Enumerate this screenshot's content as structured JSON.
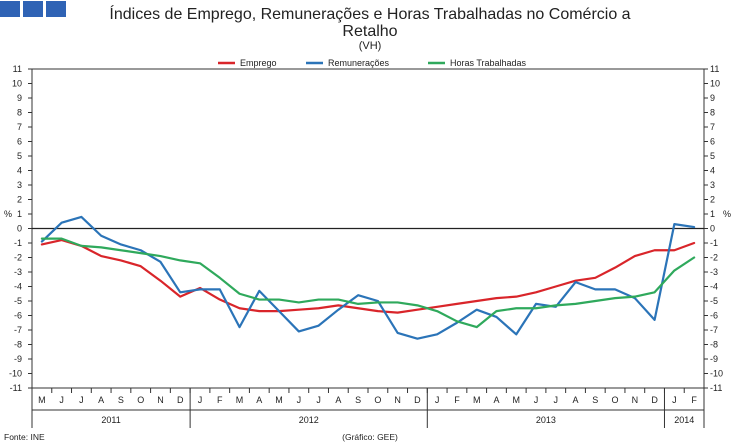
{
  "header": {
    "logo_name": "INE"
  },
  "chart_data": {
    "type": "line",
    "title_line1": "Índices de Emprego, Remunerações e Horas Trabalhadas no Comércio a",
    "title_line2": "Retalho",
    "subtitle": "(VH)",
    "y_unit_label": "%",
    "ylim": [
      -11,
      11
    ],
    "y_ticks": [
      -11,
      -10,
      -9,
      -8,
      -7,
      -6,
      -5,
      -4,
      -3,
      -2,
      -1,
      0,
      1,
      2,
      3,
      4,
      5,
      6,
      7,
      8,
      9,
      10,
      11
    ],
    "categories": [
      "M",
      "J",
      "J",
      "A",
      "S",
      "O",
      "N",
      "D",
      "J",
      "F",
      "M",
      "A",
      "M",
      "J",
      "J",
      "A",
      "S",
      "O",
      "N",
      "D",
      "J",
      "F",
      "M",
      "A",
      "M",
      "J",
      "J",
      "A",
      "S",
      "O",
      "N",
      "D",
      "J",
      "F"
    ],
    "years": [
      {
        "label": "2011",
        "start": 0,
        "end": 7
      },
      {
        "label": "2012",
        "start": 8,
        "end": 19
      },
      {
        "label": "2013",
        "start": 20,
        "end": 31
      },
      {
        "label": "2014",
        "start": 32,
        "end": 33
      }
    ],
    "series": [
      {
        "name": "Emprego",
        "color": "#d9252a",
        "values": [
          -1.1,
          -0.8,
          -1.2,
          -1.9,
          -2.2,
          -2.6,
          -3.6,
          -4.7,
          -4.1,
          -4.9,
          -5.5,
          -5.7,
          -5.7,
          -5.6,
          -5.5,
          -5.3,
          -5.5,
          -5.7,
          -5.8,
          -5.6,
          -5.4,
          -5.2,
          -5.0,
          -4.8,
          -4.7,
          -4.4,
          -4.0,
          -3.6,
          -3.4,
          -2.7,
          -1.9,
          -1.5,
          -1.5,
          -1.0
        ]
      },
      {
        "name": "Remunerações",
        "color": "#2b74b8",
        "values": [
          -0.9,
          0.4,
          0.8,
          -0.5,
          -1.1,
          -1.5,
          -2.3,
          -4.4,
          -4.2,
          -4.2,
          -6.8,
          -4.3,
          -5.7,
          -7.1,
          -6.7,
          -5.6,
          -4.6,
          -5.0,
          -7.2,
          -7.6,
          -7.3,
          -6.5,
          -5.6,
          -6.1,
          -7.3,
          -5.2,
          -5.4,
          -3.7,
          -4.2,
          -4.2,
          -4.8,
          -6.3,
          0.3,
          0.1
        ]
      },
      {
        "name": "Horas Trabalhadas",
        "color": "#2fa95c",
        "values": [
          -0.7,
          -0.7,
          -1.2,
          -1.3,
          -1.5,
          -1.7,
          -1.9,
          -2.2,
          -2.4,
          -3.4,
          -4.5,
          -4.9,
          -4.9,
          -5.1,
          -4.9,
          -4.9,
          -5.2,
          -5.1,
          -5.1,
          -5.3,
          -5.7,
          -6.4,
          -6.8,
          -5.7,
          -5.5,
          -5.5,
          -5.3,
          -5.2,
          -5.0,
          -4.8,
          -4.7,
          -4.4,
          -2.9,
          -2.0
        ]
      }
    ],
    "source": "Fonte: INE",
    "credit": "(Gráfico: GEE)"
  }
}
